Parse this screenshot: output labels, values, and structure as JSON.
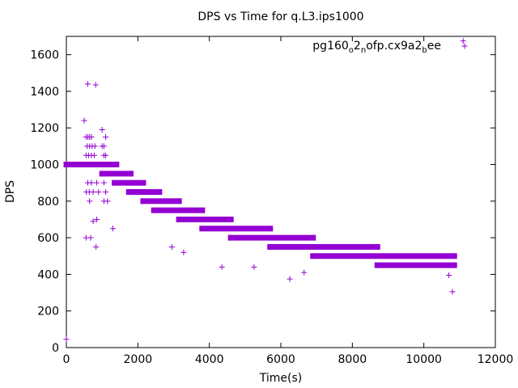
{
  "chart_data": {
    "type": "scatter",
    "title": "DPS vs Time for q.L3.ips1000",
    "xlabel": "Time(s)",
    "ylabel": "DPS",
    "xlim": [
      0,
      12000
    ],
    "ylim": [
      0,
      1700
    ],
    "x_ticks": [
      0,
      2000,
      4000,
      6000,
      8000,
      10000,
      12000
    ],
    "y_ticks": [
      0,
      200,
      400,
      600,
      800,
      1000,
      1200,
      1400,
      1600
    ],
    "grid": false,
    "legend_position": "top-right",
    "series": [
      {
        "name": "pg160_o2_nofp.cx9a2_bee",
        "color": "#9400d3",
        "marker": "plus",
        "bands": [
          {
            "y": 1000,
            "x_start": 0,
            "x_end": 1400
          },
          {
            "y": 950,
            "x_start": 1000,
            "x_end": 1800
          },
          {
            "y": 900,
            "x_start": 1350,
            "x_end": 2150
          },
          {
            "y": 850,
            "x_start": 1750,
            "x_end": 2600
          },
          {
            "y": 800,
            "x_start": 2150,
            "x_end": 3150
          },
          {
            "y": 750,
            "x_start": 2450,
            "x_end": 3800
          },
          {
            "y": 700,
            "x_start": 3150,
            "x_end": 4600
          },
          {
            "y": 650,
            "x_start": 3800,
            "x_end": 5700
          },
          {
            "y": 600,
            "x_start": 4600,
            "x_end": 6900
          },
          {
            "y": 550,
            "x_start": 5700,
            "x_end": 8700
          },
          {
            "y": 500,
            "x_start": 6900,
            "x_end": 10850
          },
          {
            "y": 450,
            "x_start": 8700,
            "x_end": 10850
          }
        ],
        "points": [
          [
            0,
            45
          ],
          [
            0,
            1000
          ],
          [
            500,
            1240
          ],
          [
            600,
            1440
          ],
          [
            820,
            1435
          ],
          [
            1000,
            1190
          ],
          [
            550,
            1150
          ],
          [
            600,
            1150
          ],
          [
            650,
            1150
          ],
          [
            700,
            1150
          ],
          [
            1100,
            1150
          ],
          [
            580,
            1100
          ],
          [
            650,
            1100
          ],
          [
            720,
            1100
          ],
          [
            800,
            1100
          ],
          [
            1000,
            1100
          ],
          [
            1050,
            1100
          ],
          [
            550,
            1050
          ],
          [
            620,
            1050
          ],
          [
            700,
            1050
          ],
          [
            780,
            1050
          ],
          [
            1050,
            1050
          ],
          [
            1100,
            1050
          ],
          [
            600,
            900
          ],
          [
            700,
            900
          ],
          [
            850,
            900
          ],
          [
            1050,
            900
          ],
          [
            560,
            850
          ],
          [
            640,
            850
          ],
          [
            750,
            850
          ],
          [
            900,
            850
          ],
          [
            1100,
            850
          ],
          [
            650,
            800
          ],
          [
            1050,
            800
          ],
          [
            1150,
            800
          ],
          [
            750,
            690
          ],
          [
            850,
            700
          ],
          [
            1300,
            650
          ],
          [
            550,
            600
          ],
          [
            680,
            600
          ],
          [
            830,
            550
          ],
          [
            2950,
            550
          ],
          [
            3280,
            520
          ],
          [
            4350,
            440
          ],
          [
            5250,
            440
          ],
          [
            6250,
            375
          ],
          [
            6650,
            410
          ],
          [
            10700,
            395
          ],
          [
            10800,
            305
          ],
          [
            11100,
            1675
          ]
        ]
      }
    ]
  }
}
